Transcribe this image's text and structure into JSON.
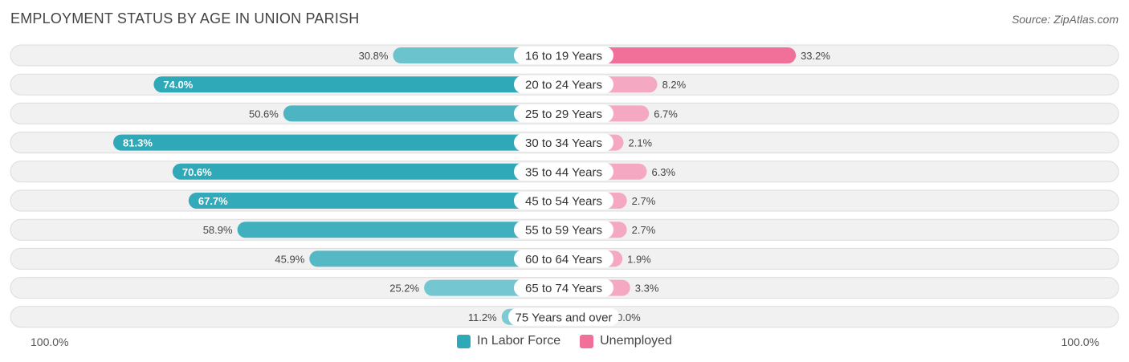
{
  "chart_data": {
    "type": "bar",
    "orientation": "horizontal-diverging",
    "title": "EMPLOYMENT STATUS BY AGE IN UNION PARISH",
    "source": "Source: ZipAtlas.com",
    "categories": [
      "16 to 19 Years",
      "20 to 24 Years",
      "25 to 29 Years",
      "30 to 34 Years",
      "35 to 44 Years",
      "45 to 54 Years",
      "55 to 59 Years",
      "60 to 64 Years",
      "65 to 74 Years",
      "75 Years and over"
    ],
    "series": [
      {
        "name": "In Labor Force",
        "values": [
          30.8,
          74.0,
          50.6,
          81.3,
          70.6,
          67.7,
          58.9,
          45.9,
          25.2,
          11.2
        ],
        "labels": [
          "30.8%",
          "74.0%",
          "50.6%",
          "81.3%",
          "70.6%",
          "67.7%",
          "58.9%",
          "45.9%",
          "25.2%",
          "11.2%"
        ],
        "color": "#2fa8b8",
        "color_light": "#7ccad3"
      },
      {
        "name": "Unemployed",
        "values": [
          33.2,
          8.2,
          6.7,
          2.1,
          6.3,
          2.7,
          2.7,
          1.9,
          3.3,
          0.0
        ],
        "labels": [
          "33.2%",
          "8.2%",
          "6.7%",
          "2.1%",
          "6.3%",
          "2.7%",
          "2.7%",
          "1.9%",
          "3.3%",
          "0.0%"
        ],
        "color": "#f0709a",
        "color_light": "#f5a8c2"
      }
    ],
    "xlim": [
      -100,
      100
    ],
    "axis_labels": {
      "left": "100.0%",
      "right": "100.0%"
    },
    "legend_position": "bottom-center"
  }
}
